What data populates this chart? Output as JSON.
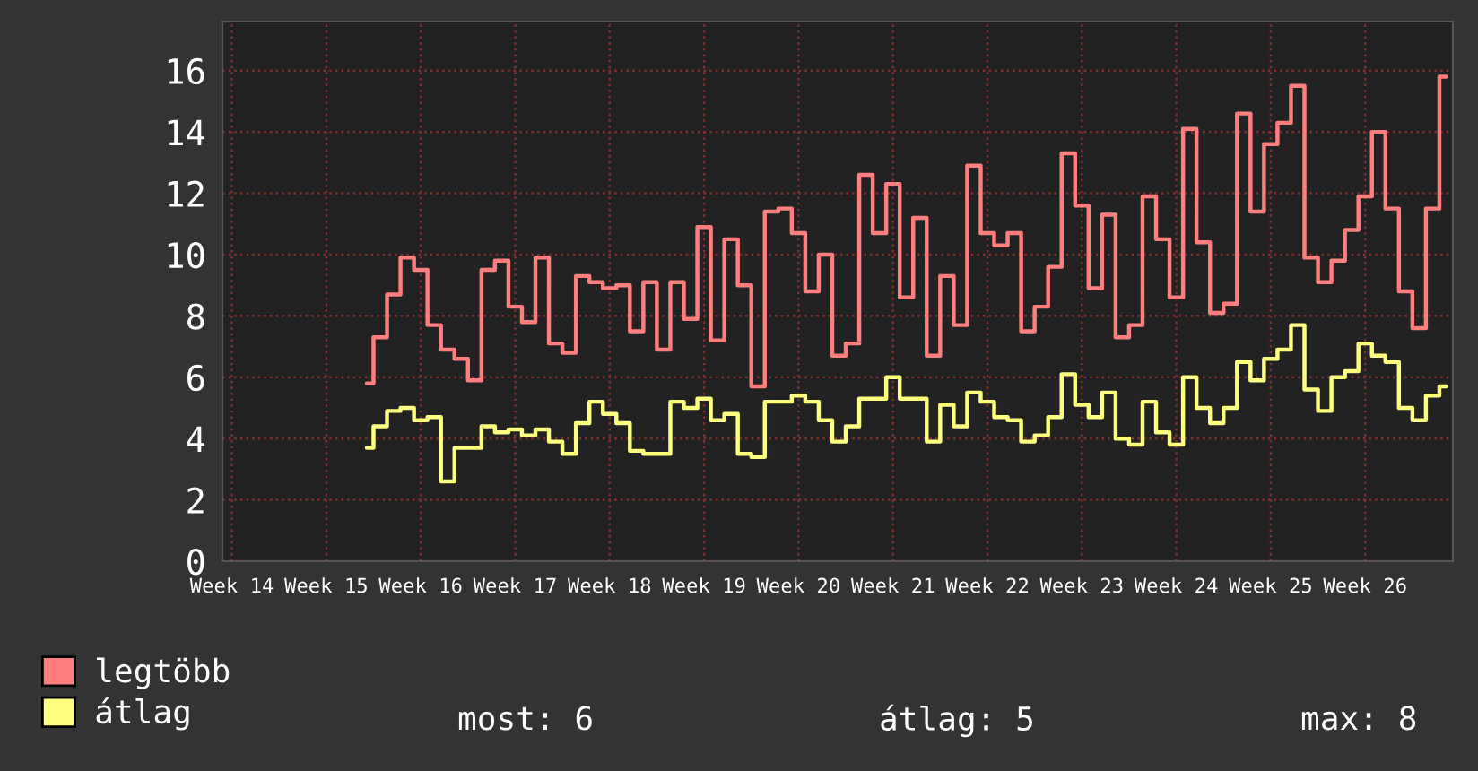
{
  "chart_data": {
    "type": "step",
    "categories": [
      "Week 14",
      null,
      null,
      null,
      null,
      null,
      null,
      "Week 15",
      null,
      null,
      null,
      null,
      null,
      null,
      "Week 16",
      null,
      null,
      null,
      null,
      null,
      null,
      "Week 17",
      null,
      null,
      null,
      null,
      null,
      null,
      "Week 18",
      null,
      null,
      null,
      null,
      null,
      null,
      "Week 19",
      null,
      null,
      null,
      null,
      null,
      null,
      "Week 20",
      null,
      null,
      null,
      null,
      null,
      null,
      "Week 21",
      null,
      null,
      null,
      null,
      null,
      null,
      "Week 22",
      null,
      null,
      null,
      null,
      null,
      null,
      "Week 23",
      null,
      null,
      null,
      null,
      null,
      null,
      "Week 24",
      null,
      null,
      null,
      null,
      null,
      null,
      "Week 25",
      null,
      null,
      null,
      null,
      null,
      null,
      "Week 26",
      null,
      null,
      null,
      null,
      null,
      null
    ],
    "series": [
      {
        "name": "legtöbb",
        "color": "#ff7f7f",
        "values": [
          null,
          null,
          null,
          null,
          null,
          null,
          null,
          null,
          null,
          null,
          5.8,
          7.3,
          8.7,
          9.9,
          9.5,
          7.7,
          6.9,
          6.6,
          5.9,
          9.5,
          9.8,
          8.3,
          7.8,
          9.9,
          7.1,
          6.8,
          9.3,
          9.1,
          8.9,
          9.0,
          7.5,
          9.1,
          6.9,
          9.1,
          7.9,
          10.9,
          7.2,
          10.5,
          9.0,
          5.7,
          11.4,
          11.5,
          10.7,
          8.8,
          10.0,
          6.7,
          7.1,
          12.6,
          10.7,
          12.3,
          8.6,
          11.2,
          6.7,
          9.3,
          7.7,
          12.9,
          10.7,
          10.3,
          10.7,
          7.5,
          8.3,
          9.6,
          13.3,
          11.6,
          8.9,
          11.3,
          7.3,
          7.7,
          11.9,
          10.5,
          8.6,
          14.1,
          10.4,
          8.1,
          8.4,
          14.6,
          11.4,
          13.6,
          14.3,
          15.5,
          9.9,
          9.1,
          9.8,
          10.8,
          11.9,
          14.0,
          11.5,
          8.8,
          7.6,
          11.5,
          15.8
        ]
      },
      {
        "name": "átlag",
        "color": "#ffff80",
        "values": [
          null,
          null,
          null,
          null,
          null,
          null,
          null,
          null,
          null,
          null,
          3.7,
          4.4,
          4.9,
          5.0,
          4.6,
          4.7,
          2.6,
          3.7,
          3.7,
          4.4,
          4.2,
          4.3,
          4.1,
          4.3,
          3.9,
          3.5,
          4.5,
          5.2,
          4.8,
          4.5,
          3.6,
          3.5,
          3.5,
          5.2,
          5.0,
          5.3,
          4.6,
          4.8,
          3.5,
          3.4,
          5.2,
          5.2,
          5.4,
          5.2,
          4.6,
          3.9,
          4.4,
          5.3,
          5.3,
          6.0,
          5.3,
          5.3,
          3.9,
          5.1,
          4.4,
          5.5,
          5.2,
          4.7,
          4.6,
          3.9,
          4.1,
          4.7,
          6.1,
          5.1,
          4.7,
          5.5,
          4.0,
          3.8,
          5.2,
          4.2,
          3.8,
          6.0,
          5.0,
          4.5,
          5.0,
          6.5,
          5.9,
          6.6,
          6.9,
          7.7,
          5.6,
          4.9,
          6.0,
          6.2,
          7.1,
          6.7,
          6.5,
          5.0,
          4.6,
          5.4,
          5.7
        ]
      }
    ],
    "ylim": [
      0,
      17.6
    ],
    "yticks": [
      0,
      2,
      4,
      6,
      8,
      10,
      12,
      14,
      16
    ],
    "grid": true,
    "legend": "bottom left",
    "line_style": "solid",
    "annotations": [
      "most: 6",
      "átlag: 5",
      "max: 8"
    ]
  }
}
